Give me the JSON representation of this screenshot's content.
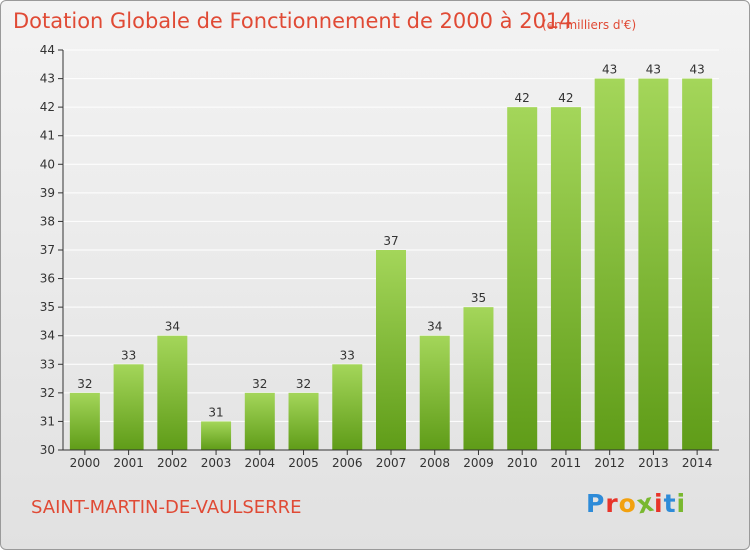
{
  "header": {
    "title": "Dotation Globale de Fonctionnement de 2000 à 2014",
    "unit": "(en milliers d'€)"
  },
  "footer": {
    "commune": "SAINT-MARTIN-DE-VAULSERRE",
    "logo_letters": [
      "P",
      "r",
      "o",
      "x",
      "i",
      "t",
      "i"
    ],
    "logo_colors": [
      "#2e8bd8",
      "#e8342a",
      "#f2a10f",
      "#79b82f",
      "#e8342a",
      "#2e8bd8",
      "#79b82f"
    ]
  },
  "colors": {
    "title": "#e04a35",
    "bar_light": "#a4d65a",
    "bar_dark": "#5f9c18",
    "grid": "#ffffff",
    "axis": "#333333"
  },
  "chart_data": {
    "type": "bar",
    "title": "Dotation Globale de Fonctionnement de 2000 à 2014",
    "categories": [
      "2000",
      "2001",
      "2002",
      "2003",
      "2004",
      "2005",
      "2006",
      "2007",
      "2008",
      "2009",
      "2010",
      "2011",
      "2012",
      "2013",
      "2014"
    ],
    "values": [
      32,
      33,
      34,
      31,
      32,
      32,
      33,
      37,
      34,
      35,
      42,
      42,
      43,
      43,
      43
    ],
    "data_labels": [
      "32",
      "33",
      "34",
      "31",
      "32",
      "32",
      "33",
      "37",
      "34",
      "35",
      "42",
      "42",
      "43",
      "43",
      "43"
    ],
    "ylim": [
      30,
      44
    ],
    "yticks": [
      "30",
      "31",
      "32",
      "33",
      "34",
      "35",
      "36",
      "37",
      "38",
      "39",
      "40",
      "41",
      "42",
      "43",
      "44"
    ],
    "grid": true,
    "xlabel": "",
    "ylabel": ""
  }
}
